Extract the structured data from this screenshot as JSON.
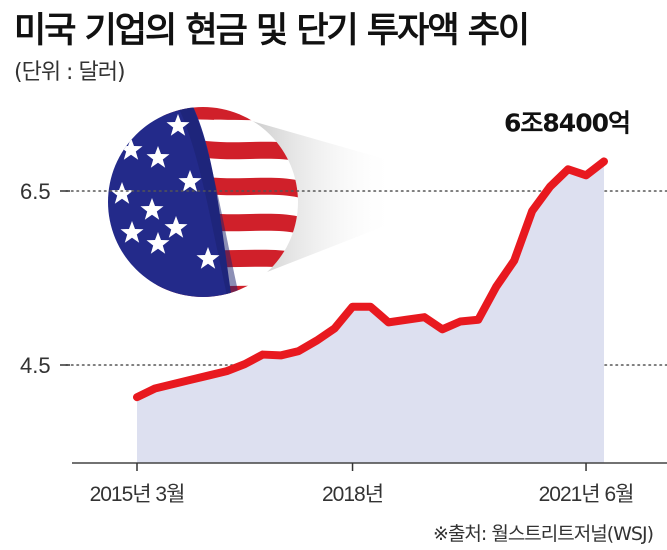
{
  "title": "미국 기업의 현금 및 단기 투자액 추이",
  "unit_label": "(단위 : 달러)",
  "source": "※출처: 월스트리트저널(WSJ)",
  "chart_data": {
    "type": "area",
    "title": "미국 기업의 현금 및 단기 투자액 추이",
    "unit": "(단위 : 달러)",
    "ylim": [
      3.5,
      7.5
    ],
    "yticks": [
      {
        "value": 4.5,
        "label": "4.5"
      },
      {
        "value": 6.5,
        "label": "6.5"
      }
    ],
    "xticks": [
      {
        "index": 0,
        "label": "2015년 3월"
      },
      {
        "index": 12,
        "label": "2018년"
      },
      {
        "index": 25,
        "label": "2021년 6월"
      }
    ],
    "gridlines": "dotted at y ticks",
    "values": [
      4.13,
      4.23,
      4.28,
      4.33,
      4.38,
      4.43,
      4.51,
      4.62,
      4.61,
      4.66,
      4.78,
      4.92,
      5.17,
      5.17,
      4.99,
      5.02,
      5.05,
      4.91,
      5.0,
      5.02,
      5.4,
      5.7,
      6.27,
      6.55,
      6.75,
      6.68,
      6.84
    ],
    "annotation": {
      "text": "6조8400억",
      "index": 26
    },
    "colors": {
      "line": "#e8191f",
      "area": "#dde0f0"
    }
  }
}
